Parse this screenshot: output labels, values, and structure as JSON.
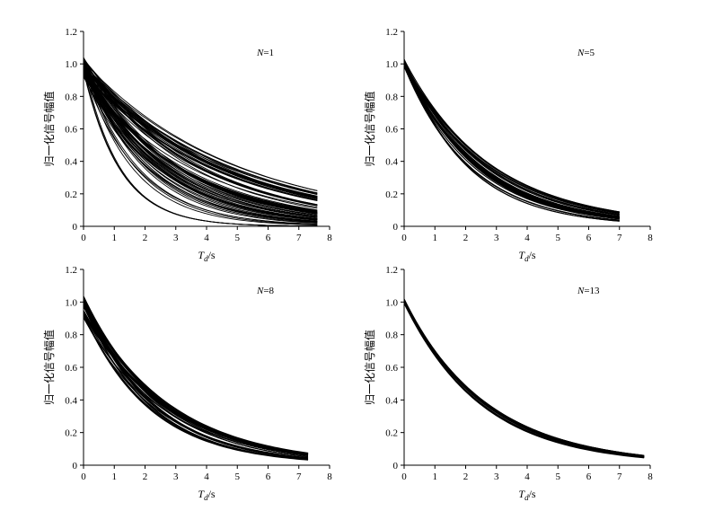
{
  "chart_data": [
    {
      "type": "line",
      "annotation_var": "N",
      "annotation_value": "=1",
      "xlabel_var": "T",
      "xlabel_sub": "d",
      "xlabel_unit": "/s",
      "ylabel": "归一化信号幅值",
      "xlim": [
        0,
        8
      ],
      "ylim": [
        0,
        1.2
      ],
      "x_ticks": [
        "0",
        "1",
        "2",
        "3",
        "4",
        "5",
        "6",
        "7",
        "8"
      ],
      "y_ticks": [
        "0",
        "0.2",
        "0.4",
        "0.6",
        "0.8",
        "1.0",
        "1.2"
      ],
      "grid": false,
      "x_end": 7.6,
      "curve_count": 80,
      "start_range": [
        0.92,
        1.04
      ],
      "end_range": [
        0.0,
        0.22
      ]
    },
    {
      "type": "line",
      "annotation_var": "N",
      "annotation_value": "=5",
      "xlabel_var": "T",
      "xlabel_sub": "d",
      "xlabel_unit": "/s",
      "ylabel": "归一化信号幅值",
      "xlim": [
        0,
        8
      ],
      "ylim": [
        0,
        1.2
      ],
      "x_ticks": [
        "0",
        "1",
        "2",
        "3",
        "4",
        "5",
        "6",
        "7",
        "8"
      ],
      "y_ticks": [
        "0",
        "0.2",
        "0.4",
        "0.6",
        "0.8",
        "1.0",
        "1.2"
      ],
      "grid": false,
      "x_end": 7.0,
      "curve_count": 30,
      "start_range": [
        0.98,
        1.03
      ],
      "end_range": [
        0.03,
        0.09
      ]
    },
    {
      "type": "line",
      "annotation_var": "N",
      "annotation_value": "=8",
      "xlabel_var": "T",
      "xlabel_sub": "d",
      "xlabel_unit": "/s",
      "ylabel": "归一化信号幅值",
      "xlim": [
        0,
        8
      ],
      "ylim": [
        0,
        1.2
      ],
      "x_ticks": [
        "0",
        "1",
        "2",
        "3",
        "4",
        "5",
        "6",
        "7",
        "8"
      ],
      "y_ticks": [
        "0",
        "0.2",
        "0.4",
        "0.6",
        "0.8",
        "1.0",
        "1.2"
      ],
      "grid": false,
      "x_end": 7.3,
      "curve_count": 30,
      "start_range": [
        0.9,
        1.05
      ],
      "end_range": [
        0.03,
        0.075
      ]
    },
    {
      "type": "line",
      "annotation_var": "N",
      "annotation_value": "=13",
      "xlabel_var": "T",
      "xlabel_sub": "d",
      "xlabel_unit": "/s",
      "ylabel": "归一化信号幅值",
      "xlim": [
        0,
        8
      ],
      "ylim": [
        0,
        1.2
      ],
      "x_ticks": [
        "0",
        "1",
        "2",
        "3",
        "4",
        "5",
        "6",
        "7",
        "8"
      ],
      "y_ticks": [
        "0",
        "0.2",
        "0.4",
        "0.6",
        "0.8",
        "1.0",
        "1.2"
      ],
      "grid": false,
      "x_end": 7.8,
      "curve_count": 20,
      "start_range": [
        0.99,
        1.02
      ],
      "end_range": [
        0.045,
        0.06
      ]
    }
  ]
}
